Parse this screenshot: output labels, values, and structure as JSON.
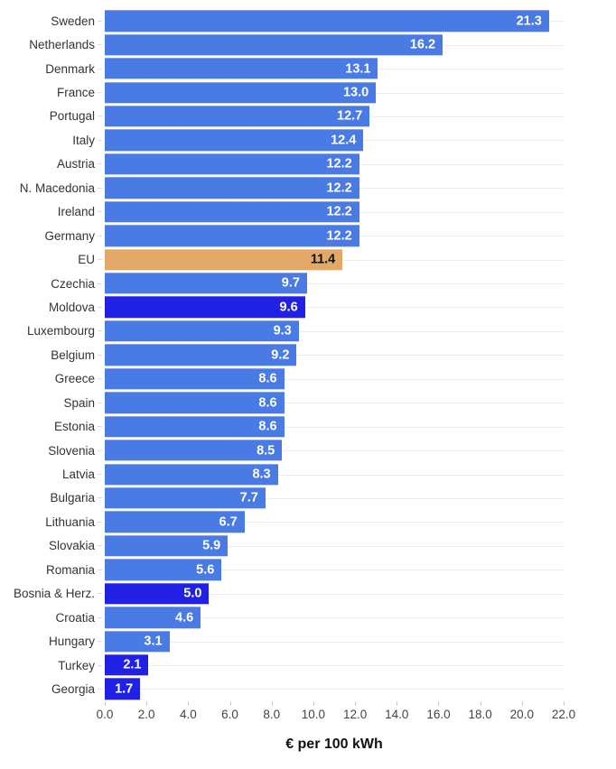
{
  "chart_data": {
    "type": "bar",
    "orientation": "horizontal",
    "title": "",
    "xlabel": "€ per 100 kWh",
    "ylabel": "",
    "xlim": [
      0,
      22
    ],
    "x_tick_values": [
      0,
      2,
      4,
      6,
      8,
      10,
      12,
      14,
      16,
      18,
      20,
      22
    ],
    "x_tick_labels": [
      "0.0",
      "2.0",
      "4.0",
      "6.0",
      "8.0",
      "10.0",
      "12.0",
      "14.0",
      "16.0",
      "18.0",
      "20.0",
      "22.0"
    ],
    "grid": "horizontal category gridlines, light gray",
    "legend": "none",
    "value_labels": "inside bar end, bold",
    "categories": [
      "Sweden",
      "Netherlands",
      "Denmark",
      "France",
      "Portugal",
      "Italy",
      "Austria",
      "N. Macedonia",
      "Ireland",
      "Germany",
      "EU",
      "Czechia",
      "Moldova",
      "Luxembourg",
      "Belgium",
      "Greece",
      "Spain",
      "Estonia",
      "Slovenia",
      "Latvia",
      "Bulgaria",
      "Lithuania",
      "Slovakia",
      "Romania",
      "Bosnia & Herz.",
      "Croatia",
      "Hungary",
      "Turkey",
      "Georgia"
    ],
    "values": [
      21.3,
      16.2,
      13.1,
      13.0,
      12.7,
      12.4,
      12.2,
      12.2,
      12.2,
      12.2,
      11.4,
      9.7,
      9.6,
      9.3,
      9.2,
      8.6,
      8.6,
      8.6,
      8.5,
      8.3,
      7.7,
      6.7,
      5.9,
      5.6,
      5.0,
      4.6,
      3.1,
      2.1,
      1.7
    ],
    "bars": [
      {
        "label": "Sweden",
        "value": 21.3,
        "value_label": "21.3",
        "role": "default"
      },
      {
        "label": "Netherlands",
        "value": 16.2,
        "value_label": "16.2",
        "role": "default"
      },
      {
        "label": "Denmark",
        "value": 13.1,
        "value_label": "13.1",
        "role": "default"
      },
      {
        "label": "France",
        "value": 13.0,
        "value_label": "13.0",
        "role": "default"
      },
      {
        "label": "Portugal",
        "value": 12.7,
        "value_label": "12.7",
        "role": "default"
      },
      {
        "label": "Italy",
        "value": 12.4,
        "value_label": "12.4",
        "role": "default"
      },
      {
        "label": "Austria",
        "value": 12.2,
        "value_label": "12.2",
        "role": "default"
      },
      {
        "label": "N. Macedonia",
        "value": 12.2,
        "value_label": "12.2",
        "role": "default"
      },
      {
        "label": "Ireland",
        "value": 12.2,
        "value_label": "12.2",
        "role": "default"
      },
      {
        "label": "Germany",
        "value": 12.2,
        "value_label": "12.2",
        "role": "default"
      },
      {
        "label": "EU",
        "value": 11.4,
        "value_label": "11.4",
        "role": "eu"
      },
      {
        "label": "Czechia",
        "value": 9.7,
        "value_label": "9.7",
        "role": "default"
      },
      {
        "label": "Moldova",
        "value": 9.6,
        "value_label": "9.6",
        "role": "highlight"
      },
      {
        "label": "Luxembourg",
        "value": 9.3,
        "value_label": "9.3",
        "role": "default"
      },
      {
        "label": "Belgium",
        "value": 9.2,
        "value_label": "9.2",
        "role": "default"
      },
      {
        "label": "Greece",
        "value": 8.6,
        "value_label": "8.6",
        "role": "default"
      },
      {
        "label": "Spain",
        "value": 8.6,
        "value_label": "8.6",
        "role": "default"
      },
      {
        "label": "Estonia",
        "value": 8.6,
        "value_label": "8.6",
        "role": "default"
      },
      {
        "label": "Slovenia",
        "value": 8.5,
        "value_label": "8.5",
        "role": "default"
      },
      {
        "label": "Latvia",
        "value": 8.3,
        "value_label": "8.3",
        "role": "default"
      },
      {
        "label": "Bulgaria",
        "value": 7.7,
        "value_label": "7.7",
        "role": "default"
      },
      {
        "label": "Lithuania",
        "value": 6.7,
        "value_label": "6.7",
        "role": "default"
      },
      {
        "label": "Slovakia",
        "value": 5.9,
        "value_label": "5.9",
        "role": "default"
      },
      {
        "label": "Romania",
        "value": 5.6,
        "value_label": "5.6",
        "role": "default"
      },
      {
        "label": "Bosnia & Herz.",
        "value": 5.0,
        "value_label": "5.0",
        "role": "highlight"
      },
      {
        "label": "Croatia",
        "value": 4.6,
        "value_label": "4.6",
        "role": "default"
      },
      {
        "label": "Hungary",
        "value": 3.1,
        "value_label": "3.1",
        "role": "default"
      },
      {
        "label": "Turkey",
        "value": 2.1,
        "value_label": "2.1",
        "role": "highlight"
      },
      {
        "label": "Georgia",
        "value": 1.7,
        "value_label": "1.7",
        "role": "highlight"
      }
    ]
  },
  "colors": {
    "bar_default": "#4a7be5",
    "bar_highlight": "#2121e6",
    "bar_eu": "#e2a868",
    "value_text_default": "#ffffff",
    "value_text_eu": "#111111",
    "gridline": "#ededed",
    "category_tick": "#dddddd",
    "axis_tick": "#cccccc",
    "category_text": "#333333",
    "axis_text": "#444444",
    "background": "#ffffff"
  }
}
